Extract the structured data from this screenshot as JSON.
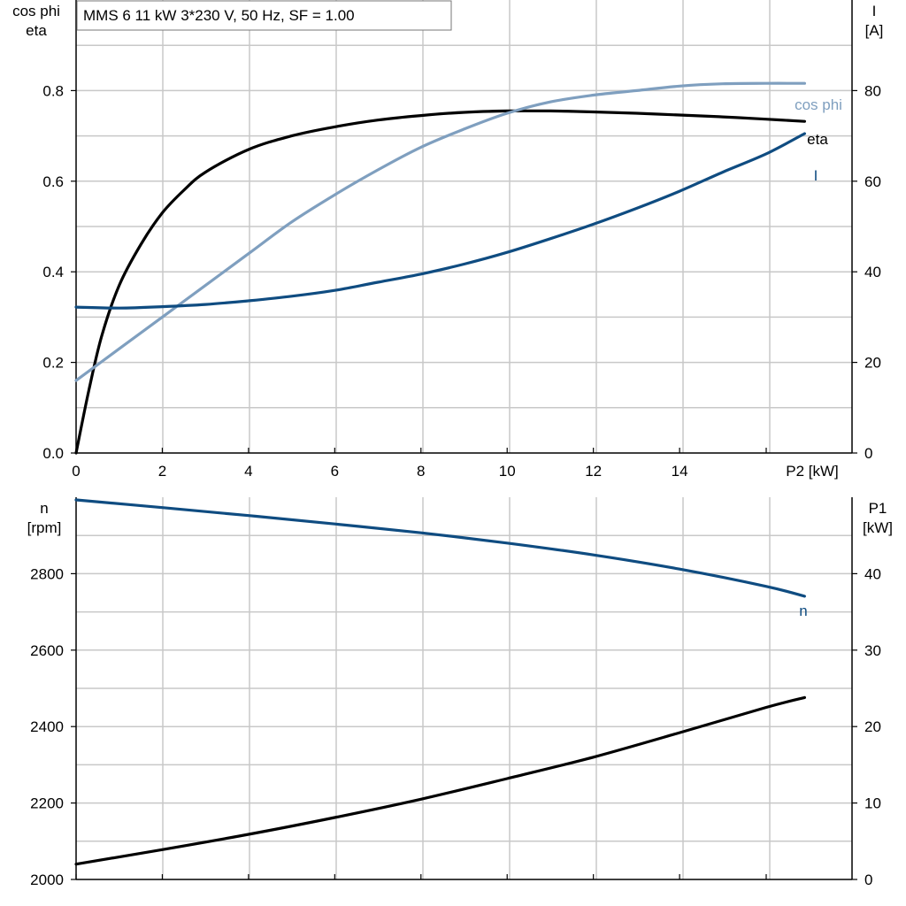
{
  "chart_data": [
    {
      "type": "line",
      "title": "MMS 6   11 kW   3*230 V, 50 Hz, SF = 1.00",
      "xlabel": "P2 [kW]",
      "ylabel_left": [
        "cos phi",
        "eta"
      ],
      "ylabel_right": [
        "I",
        "[A]"
      ],
      "xlim": [
        0,
        18
      ],
      "ylim_left": [
        0,
        1.0
      ],
      "ylim_right": [
        0,
        100
      ],
      "x_ticks": [
        0,
        2,
        4,
        6,
        8,
        10,
        12,
        14
      ],
      "y_left_ticks": [
        0.0,
        0.2,
        0.4,
        0.6,
        0.8
      ],
      "y_left_tick_labels": [
        "0.0",
        "0.2",
        "0.4",
        "0.6",
        "0.8"
      ],
      "y_right_ticks": [
        0,
        20,
        40,
        60,
        80
      ],
      "grid": true,
      "series": [
        {
          "name": "eta",
          "axis": "left",
          "color": "#000000",
          "x": [
            0,
            0.3,
            0.6,
            1.0,
            1.5,
            2.0,
            2.5,
            3.0,
            4.0,
            5.0,
            6.0,
            7.0,
            8.0,
            9.0,
            10.0,
            11.0,
            12.0,
            13.0,
            14.0,
            15.0,
            16.0,
            16.9
          ],
          "values": [
            0.0,
            0.14,
            0.26,
            0.37,
            0.46,
            0.53,
            0.58,
            0.62,
            0.67,
            0.7,
            0.72,
            0.735,
            0.745,
            0.752,
            0.755,
            0.755,
            0.753,
            0.75,
            0.746,
            0.742,
            0.737,
            0.732
          ]
        },
        {
          "name": "cos phi",
          "axis": "left",
          "color": "#7f9fbf",
          "x": [
            0,
            1,
            2,
            3,
            4,
            5,
            6,
            7,
            8,
            9,
            10,
            11,
            12,
            13,
            14,
            15,
            16,
            16.9
          ],
          "values": [
            0.16,
            0.23,
            0.3,
            0.37,
            0.44,
            0.51,
            0.57,
            0.625,
            0.675,
            0.715,
            0.75,
            0.775,
            0.79,
            0.8,
            0.81,
            0.815,
            0.816,
            0.816
          ]
        },
        {
          "name": "I",
          "axis": "right",
          "color": "#0f4c81",
          "x": [
            0,
            1,
            2,
            3,
            4,
            5,
            6,
            7,
            8,
            9,
            10,
            11,
            12,
            13,
            14,
            15,
            16,
            16.9
          ],
          "values": [
            32.2,
            32.0,
            32.3,
            32.8,
            33.6,
            34.6,
            35.9,
            37.7,
            39.5,
            41.7,
            44.3,
            47.3,
            50.5,
            54.0,
            57.8,
            62.0,
            66.0,
            70.5
          ]
        }
      ]
    },
    {
      "type": "line",
      "xlabel": "",
      "ylabel_left": [
        "n",
        "[rpm]"
      ],
      "ylabel_right": [
        "P1",
        "[kW]"
      ],
      "xlim": [
        0,
        18
      ],
      "ylim_left": [
        2000,
        3000
      ],
      "ylim_right": [
        0,
        50
      ],
      "x_ticks": [
        0,
        2,
        4,
        6,
        8,
        10,
        12,
        14
      ],
      "y_left_ticks": [
        2000,
        2200,
        2400,
        2600,
        2800
      ],
      "y_right_ticks": [
        0,
        10,
        20,
        30,
        40
      ],
      "grid": true,
      "series": [
        {
          "name": "n",
          "axis": "left",
          "color": "#0f4c81",
          "x": [
            0,
            2,
            4,
            6,
            8,
            10,
            12,
            14,
            16,
            16.9
          ],
          "values": [
            2993,
            2973,
            2952,
            2930,
            2907,
            2880,
            2849,
            2812,
            2767,
            2741
          ]
        },
        {
          "axis": "right",
          "color": "#000000",
          "x": [
            0,
            2,
            4,
            6,
            8,
            10,
            12,
            14,
            16,
            16.9
          ],
          "values": [
            2.0,
            3.9,
            5.9,
            8.1,
            10.5,
            13.2,
            16.0,
            19.2,
            22.5,
            23.8
          ]
        }
      ]
    }
  ]
}
